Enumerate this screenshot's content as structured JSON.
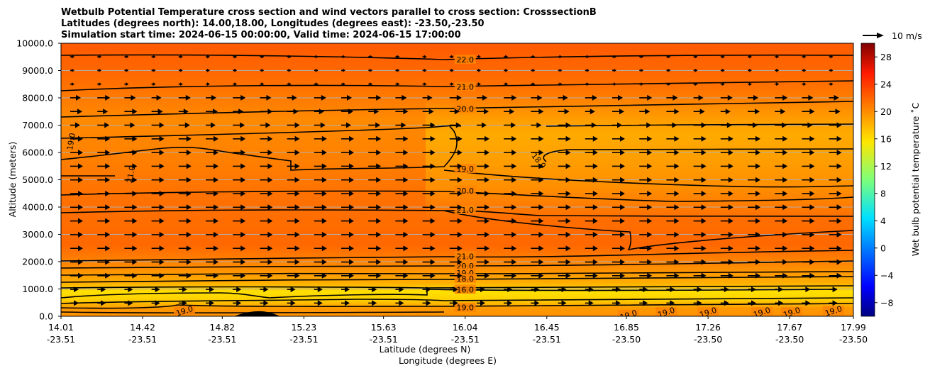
{
  "chart_data": {
    "type": "heatmap",
    "title": [
      "Wetbulb Potential Temperature cross section and wind vectors parallel to cross section: CrosssectionB",
      "Latitudes (degrees north): 14.00,18.00, Longitudes (degrees east): -23.50,-23.50",
      "Simulation start time: 2024-06-15 00:00:00, Valid time: 2024-06-15 17:00:00"
    ],
    "ylabel": "Altitude (meters)",
    "xlabel": "Latitude (degrees N)",
    "xlabel2": "Longitude (degrees E)",
    "ylim": [
      0,
      10000
    ],
    "xlim": [
      14.01,
      17.99
    ],
    "yticks": [
      0,
      1000,
      2000,
      3000,
      4000,
      5000,
      6000,
      7000,
      8000,
      9000,
      10000
    ],
    "ytick_labels": [
      "0.0",
      "1000.0",
      "2000.0",
      "3000.0",
      "4000.0",
      "5000.0",
      "6000.0",
      "7000.0",
      "8000.0",
      "9000.0",
      "10000.0"
    ],
    "xticks": [
      14.01,
      14.42,
      14.82,
      15.23,
      15.63,
      16.04,
      16.45,
      16.85,
      17.26,
      17.67,
      17.99
    ],
    "xtick_labels_lat": [
      "14.01",
      "14.42",
      "14.82",
      "15.23",
      "15.63",
      "16.04",
      "16.45",
      "16.85",
      "17.26",
      "17.67",
      "17.99"
    ],
    "xtick_labels_lon": [
      "-23.51",
      "-23.51",
      "-23.51",
      "-23.51",
      "-23.51",
      "-23.51",
      "-23.51",
      "-23.50",
      "-23.50",
      "-23.50",
      "-23.50"
    ],
    "grid": "horizontal",
    "colorbar": {
      "label": "Wet bulb potential temperature ˚C",
      "range": [
        -10,
        30
      ],
      "tick_values": [
        -8,
        -4,
        0,
        4,
        8,
        12,
        16,
        20,
        24,
        28
      ],
      "tick_labels": [
        "−8",
        "−4",
        "0",
        "4",
        "8",
        "12",
        "16",
        "20",
        "24",
        "28"
      ],
      "colormap": "jet"
    },
    "quiver_key": "10 m/s",
    "contour_labels": [
      {
        "text": "22.0",
        "lat": 16.04,
        "alt": 9400
      },
      {
        "text": "21.0",
        "lat": 16.04,
        "alt": 8400
      },
      {
        "text": "20.0",
        "lat": 16.04,
        "alt": 7600
      },
      {
        "text": "19.0",
        "lat": 16.04,
        "alt": 5400
      },
      {
        "text": "20.0",
        "lat": 16.04,
        "alt": 4600
      },
      {
        "text": "21.0",
        "lat": 16.04,
        "alt": 3900
      },
      {
        "text": "21.0",
        "lat": 16.04,
        "alt": 2200
      },
      {
        "text": "20.0",
        "lat": 16.04,
        "alt": 1850
      },
      {
        "text": "19.0",
        "lat": 16.04,
        "alt": 1580
      },
      {
        "text": "18.0",
        "lat": 16.04,
        "alt": 1380
      },
      {
        "text": "16.0",
        "lat": 16.04,
        "alt": 980
      },
      {
        "text": "19.0",
        "lat": 16.04,
        "alt": 320
      },
      {
        "text": "19.0",
        "lat": 14.06,
        "alt": 6400
      },
      {
        "text": "21.0",
        "lat": 14.36,
        "alt": 5200
      },
      {
        "text": "18.0",
        "lat": 16.41,
        "alt": 5700
      },
      {
        "text": "19.0",
        "lat": 14.63,
        "alt": 200
      },
      {
        "text": "19.0",
        "lat": 16.86,
        "alt": 50
      },
      {
        "text": "19.0",
        "lat": 17.05,
        "alt": 150
      },
      {
        "text": "19.0",
        "lat": 17.26,
        "alt": 150
      },
      {
        "text": "19.0",
        "lat": 17.53,
        "alt": 150
      },
      {
        "text": "19.0",
        "lat": 17.68,
        "alt": 150
      },
      {
        "text": "19.0",
        "lat": 17.89,
        "alt": 200
      }
    ]
  }
}
